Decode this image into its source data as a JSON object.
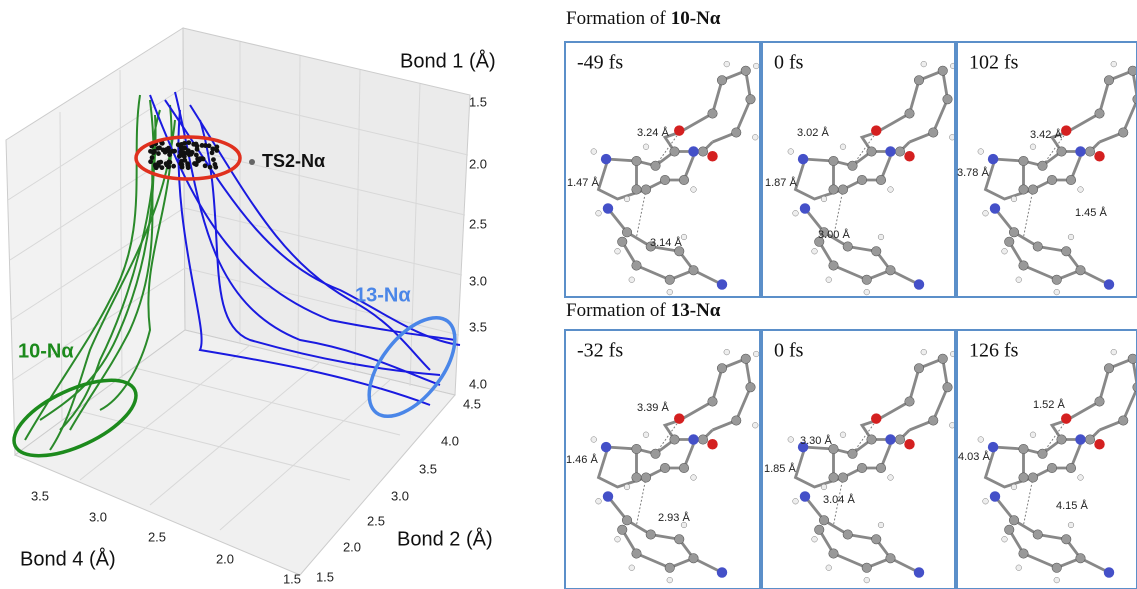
{
  "plot": {
    "axes": {
      "bond1": {
        "label": "Bond 1 (Å)",
        "ticks": [
          "1.5",
          "2.0",
          "2.5",
          "3.0",
          "3.5",
          "4.0"
        ]
      },
      "bond2": {
        "label": "Bond 2 (Å)",
        "ticks": [
          "4.5",
          "4.0",
          "3.5",
          "3.0",
          "2.5",
          "2.0",
          "1.5"
        ]
      },
      "bond4": {
        "label": "Bond 4 (Å)",
        "ticks": [
          "3.5",
          "3.0",
          "2.5",
          "2.0",
          "1.5"
        ]
      }
    },
    "annotations": {
      "ts": "TS2-Nα",
      "product_13": "13-Nα",
      "product_10": "10-Nα"
    }
  },
  "rows": [
    {
      "title": {
        "prefix": "Formation of",
        "product": "10-Nα"
      },
      "frames": [
        {
          "time": "-49 fs",
          "distances": [
            "3.24 Å",
            "1.47 Å",
            "3.14 Å"
          ]
        },
        {
          "time": "0 fs",
          "distances": [
            "3.02 Å",
            "1.87 Å",
            "3.00 Å"
          ]
        },
        {
          "time": "102 fs",
          "distances": [
            "3.42 Å",
            "3.78 Å",
            "1.45 Å"
          ]
        }
      ]
    },
    {
      "title": {
        "prefix": "Formation of",
        "product": "13-Nα"
      },
      "frames": [
        {
          "time": "-32 fs",
          "distances": [
            "3.39 Å",
            "1.46 Å",
            "2.93 Å"
          ]
        },
        {
          "time": "0 fs",
          "distances": [
            "3.30 Å",
            "1.85 Å",
            "3.04 Å"
          ]
        },
        {
          "time": "126 fs",
          "distances": [
            "1.52 Å",
            "4.03 Å",
            "4.15 Å"
          ]
        }
      ]
    }
  ]
}
